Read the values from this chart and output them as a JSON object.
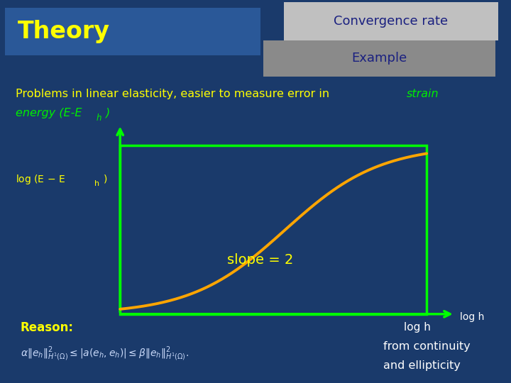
{
  "bg_color": "#1a3a6b",
  "theory_box_color": "#2a5898",
  "theory_text": "Theory",
  "theory_text_color": "#ffff00",
  "conv_rate_bg": "#c0c0c0",
  "conv_rate_text": "Convergence rate",
  "conv_rate_color": "#1a2080",
  "example_bg": "#8a8a8a",
  "example_text": "Example",
  "example_color": "#1a2080",
  "main_text_color": "#ffff00",
  "italic_text_color": "#00ee00",
  "slope_text": "slope = 2",
  "slope_color": "#ffff00",
  "xaxis_label": "log h",
  "xaxis_color": "#ffffff",
  "reason_text": "Reason:",
  "reason_color": "#ffff00",
  "continuity_text": "from continuity",
  "ellipticity_text": "and ellipticity",
  "continuity_color": "#ffffff",
  "axes_color": "#00ff00",
  "curve_color": "#ffa500",
  "gx0": 0.235,
  "gy0": 0.18,
  "gw": 0.6,
  "gh": 0.44
}
